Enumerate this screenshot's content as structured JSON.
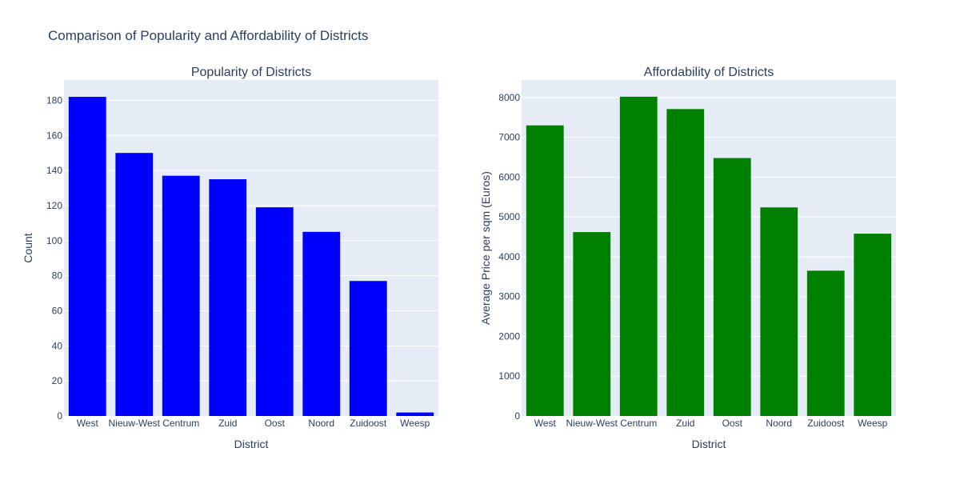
{
  "figure": {
    "title": "Comparison of Popularity and Affordability of Districts"
  },
  "chart_data": [
    {
      "type": "bar",
      "title": "Popularity of Districts",
      "xlabel": "District",
      "ylabel": "Count",
      "categories": [
        "West",
        "Nieuw-West",
        "Centrum",
        "Zuid",
        "Oost",
        "Noord",
        "Zuidoost",
        "Weesp"
      ],
      "values": [
        182,
        150,
        137,
        135,
        119,
        105,
        77,
        2
      ],
      "ylim": [
        0,
        191.6
      ],
      "yticks": [
        0,
        20,
        40,
        60,
        80,
        100,
        120,
        140,
        160,
        180
      ],
      "color": "#0000ff",
      "grid": true,
      "legend": false
    },
    {
      "type": "bar",
      "title": "Affordability of Districts",
      "xlabel": "District",
      "ylabel": "Average Price per sqm (Euros)",
      "categories": [
        "West",
        "Nieuw-West",
        "Centrum",
        "Zuid",
        "Oost",
        "Noord",
        "Zuidoost",
        "Weesp"
      ],
      "values": [
        7300,
        4620,
        8020,
        7710,
        6480,
        5240,
        3650,
        4580
      ],
      "ylim": [
        0,
        8440
      ],
      "yticks": [
        0,
        1000,
        2000,
        3000,
        4000,
        5000,
        6000,
        7000,
        8000
      ],
      "color": "#008000",
      "grid": true,
      "legend": false
    }
  ]
}
